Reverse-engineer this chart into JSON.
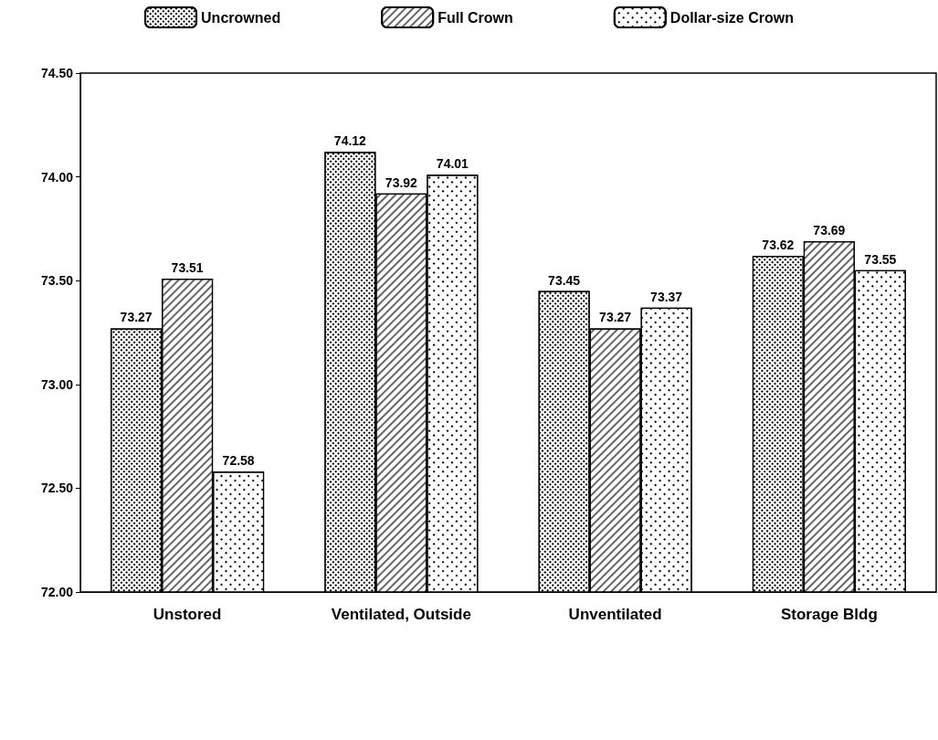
{
  "chart_data": {
    "type": "bar",
    "categories": [
      "Unstored",
      "Ventilated, Outside",
      "Unventilated",
      "Storage Bldg"
    ],
    "series": [
      {
        "name": "Uncrowned",
        "color": "#000000",
        "values": [
          73.27,
          74.12,
          73.45,
          73.62
        ]
      },
      {
        "name": "Full Crown",
        "color": "#000000",
        "values": [
          73.51,
          73.92,
          73.27,
          73.69
        ]
      },
      {
        "name": "Dollar-size Crown",
        "color": "#000000",
        "values": [
          72.58,
          74.01,
          73.37,
          73.55
        ]
      }
    ],
    "ylim": [
      72,
      74.5
    ],
    "yticks": [
      {
        "value": 72,
        "label": "72.00"
      },
      {
        "value": 72.5,
        "label": "72.50"
      },
      {
        "value": 73,
        "label": "73.00"
      },
      {
        "value": 73.5,
        "label": "73.50"
      },
      {
        "value": 74,
        "label": "74.00"
      },
      {
        "value": 74.5,
        "label": "74.50"
      }
    ],
    "grid": false,
    "legend": "top",
    "data_labels": true
  }
}
